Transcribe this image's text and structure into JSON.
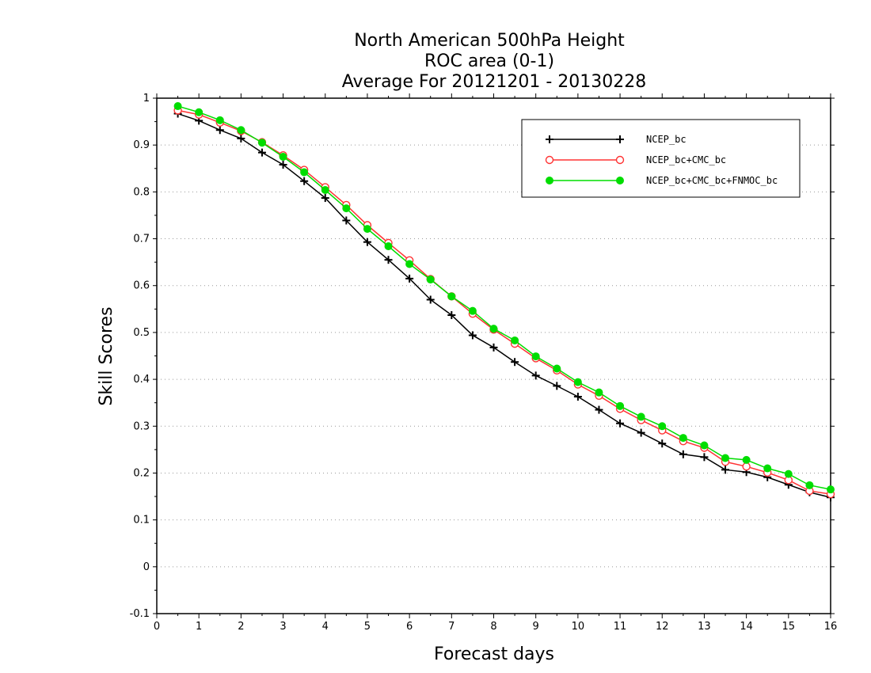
{
  "chart_data": {
    "type": "line",
    "title": [
      "North American 500hPa Height",
      "ROC area (0-1)",
      "Average For 20121201 - 20130228"
    ],
    "xlabel": "Forecast days",
    "ylabel": "Skill Scores",
    "xlim": [
      0,
      16
    ],
    "ylim": [
      -0.1,
      1
    ],
    "xticks": [
      "0",
      "1",
      "2",
      "3",
      "4",
      "5",
      "6",
      "7",
      "8",
      "9",
      "10",
      "11",
      "12",
      "13",
      "14",
      "15",
      "16"
    ],
    "yticks": [
      "-0.1",
      "0",
      "0.1",
      "0.2",
      "0.3",
      "0.4",
      "0.5",
      "0.6",
      "0.7",
      "0.8",
      "0.9",
      "1"
    ],
    "grid": "horizontal dotted",
    "legend_placement": "top-right",
    "x": [
      0.5,
      1,
      1.5,
      2,
      2.5,
      3,
      3.5,
      4,
      4.5,
      5,
      5.5,
      6,
      6.5,
      7,
      7.5,
      8,
      8.5,
      9,
      9.5,
      10,
      10.5,
      11,
      11.5,
      12,
      12.5,
      13,
      13.5,
      14,
      14.5,
      15,
      15.5,
      16
    ],
    "series": [
      {
        "name": "NCEP_bc",
        "color": "#000000",
        "marker": "plus",
        "values": [
          0.967,
          0.952,
          0.932,
          0.914,
          0.884,
          0.858,
          0.823,
          0.787,
          0.739,
          0.693,
          0.655,
          0.615,
          0.57,
          0.537,
          0.494,
          0.468,
          0.437,
          0.408,
          0.386,
          0.363,
          0.335,
          0.306,
          0.286,
          0.263,
          0.24,
          0.234,
          0.207,
          0.202,
          0.191,
          0.175,
          0.159,
          0.148
        ]
      },
      {
        "name": "NCEP_bc+CMC_bc",
        "color": "#ff3333",
        "marker": "open-circle",
        "values": [
          0.974,
          0.965,
          0.948,
          0.93,
          0.906,
          0.878,
          0.847,
          0.81,
          0.772,
          0.729,
          0.691,
          0.654,
          0.614,
          0.577,
          0.54,
          0.506,
          0.476,
          0.445,
          0.419,
          0.389,
          0.365,
          0.337,
          0.313,
          0.291,
          0.268,
          0.254,
          0.224,
          0.214,
          0.201,
          0.185,
          0.162,
          0.155
        ]
      },
      {
        "name": "NCEP_bc+CMC_bc+FNMOC_bc",
        "color": "#00dd00",
        "marker": "filled-circle",
        "values": [
          0.983,
          0.97,
          0.953,
          0.932,
          0.905,
          0.875,
          0.842,
          0.804,
          0.765,
          0.721,
          0.684,
          0.646,
          0.613,
          0.577,
          0.546,
          0.508,
          0.483,
          0.449,
          0.423,
          0.394,
          0.372,
          0.343,
          0.32,
          0.3,
          0.275,
          0.259,
          0.232,
          0.228,
          0.21,
          0.198,
          0.174,
          0.165
        ]
      }
    ]
  }
}
